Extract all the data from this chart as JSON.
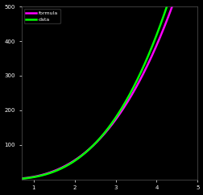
{
  "background_color": "#000000",
  "text_color": "#ffffff",
  "line1_color": "#ff00ff",
  "line2_color": "#00ff00",
  "line1_label": "formula",
  "line2_label": "data",
  "x_min": 0.7,
  "x_max": 5.0,
  "y_min": 0,
  "y_max": 500,
  "x_ticks": [
    1,
    2,
    3,
    4,
    5
  ],
  "y_ticks": [
    100,
    200,
    300,
    400,
    500
  ],
  "figsize": [
    2.53,
    2.42
  ],
  "dpi": 100,
  "linewidth": 1.8,
  "a1": 5.0,
  "b1": 1.18,
  "a2": 4.5,
  "b2": 1.22
}
